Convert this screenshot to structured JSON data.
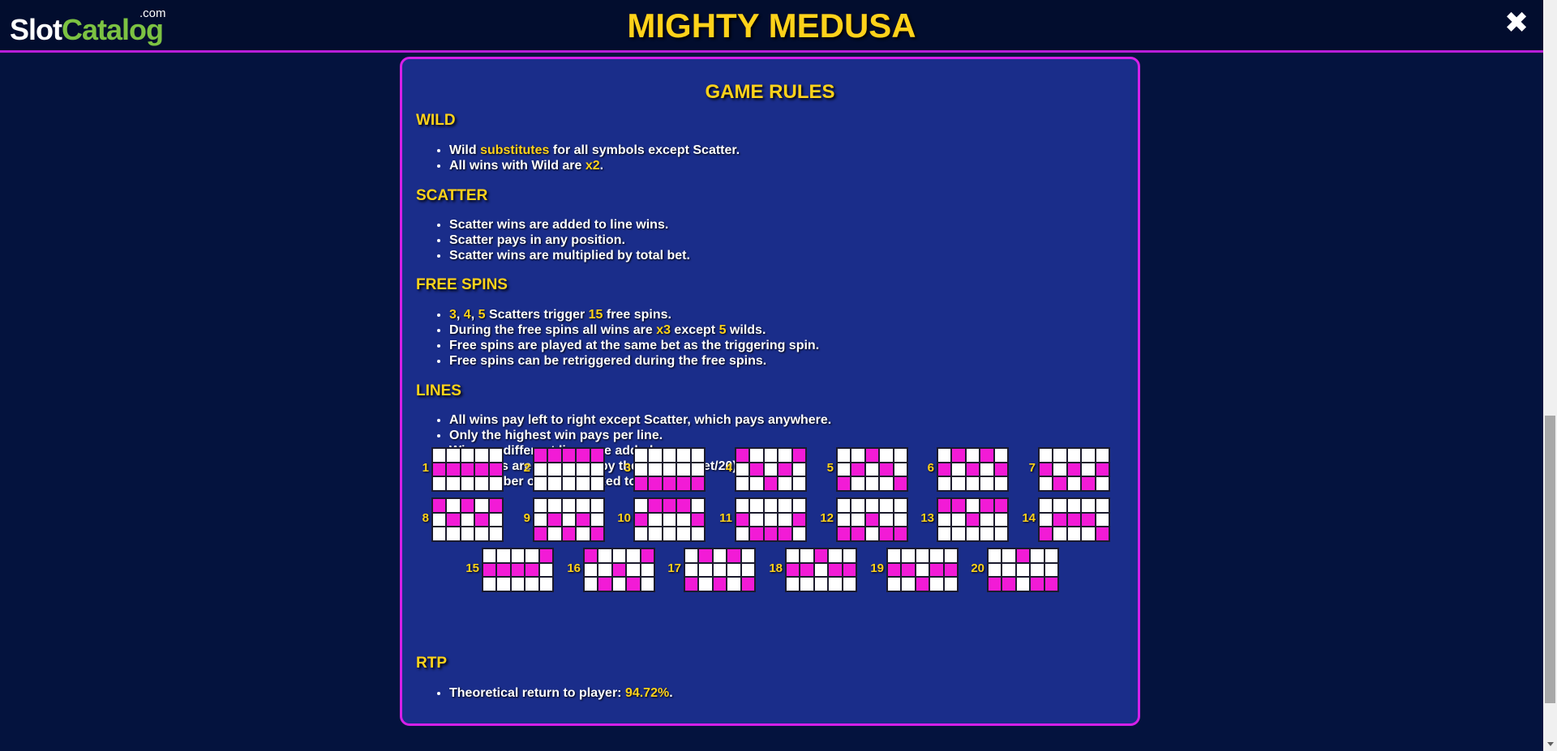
{
  "header": {
    "logo_slot": "Slot",
    "logo_catalog": "Catalog",
    "logo_com": ".com",
    "title": "MIGHTY MEDUSA",
    "close_icon": "✖"
  },
  "colors": {
    "background": "#04133e",
    "panel": "#1a2d8a",
    "panel_border": "#d520e8",
    "accent_yellow": "#ffd21a",
    "line_highlight": "#f21bd6"
  },
  "rules": {
    "title": "GAME RULES",
    "wild": {
      "heading": "WILD",
      "b1": {
        "p1": "Wild ",
        "h1": "substitutes",
        "p2": " for all symbols except Scatter."
      },
      "b2": {
        "p1": "All wins with Wild are ",
        "h1": "x2",
        "p2": "."
      }
    },
    "scatter": {
      "heading": "SCATTER",
      "b1": "Scatter wins are added to line wins.",
      "b2": "Scatter pays in any position.",
      "b3": "Scatter wins are multiplied by total bet."
    },
    "free_spins": {
      "heading": "FREE SPINS",
      "b1": {
        "h1": "3",
        "s1": ", ",
        "h2": "4",
        "s2": ", ",
        "h3": "5",
        "p1": " Scatters trigger ",
        "h4": "15",
        "p2": " free spins."
      },
      "b2": {
        "p1": "During the free spins all wins are ",
        "h1": "x3",
        "p2": " except ",
        "h2": "5",
        "p3": " wilds."
      },
      "b3": "Free spins are played at the same bet as the triggering spin.",
      "b4": "Free spins can be retriggered during the free spins."
    },
    "lines": {
      "heading": "LINES",
      "b1": "All wins pay left to right except Scatter, which pays anywhere.",
      "b2": "Only the highest win pays per line.",
      "b3": "Wins on different lines are added.",
      "b4": "Line wins are multiplied by the line bet (bet/20).",
      "b5": "The number of lines is fixed to 20.",
      "paylines": [
        {
          "number": "1",
          "rows": [
            1,
            1,
            1,
            1,
            1
          ]
        },
        {
          "number": "2",
          "rows": [
            0,
            0,
            0,
            0,
            0
          ]
        },
        {
          "number": "3",
          "rows": [
            2,
            2,
            2,
            2,
            2
          ]
        },
        {
          "number": "4",
          "rows": [
            0,
            1,
            2,
            1,
            0
          ]
        },
        {
          "number": "5",
          "rows": [
            2,
            1,
            0,
            1,
            2
          ]
        },
        {
          "number": "6",
          "rows": [
            1,
            0,
            1,
            0,
            1
          ]
        },
        {
          "number": "7",
          "rows": [
            1,
            2,
            1,
            2,
            1
          ]
        },
        {
          "number": "8",
          "rows": [
            0,
            1,
            0,
            1,
            0
          ]
        },
        {
          "number": "9",
          "rows": [
            2,
            1,
            2,
            1,
            2
          ]
        },
        {
          "number": "10",
          "rows": [
            1,
            0,
            0,
            0,
            1
          ]
        },
        {
          "number": "11",
          "rows": [
            1,
            2,
            2,
            2,
            1
          ]
        },
        {
          "number": "12",
          "rows": [
            2,
            2,
            1,
            2,
            2
          ]
        },
        {
          "number": "13",
          "rows": [
            0,
            0,
            1,
            0,
            0
          ]
        },
        {
          "number": "14",
          "rows": [
            2,
            1,
            1,
            1,
            2
          ]
        },
        {
          "number": "15",
          "rows": [
            1,
            1,
            1,
            1,
            0
          ]
        },
        {
          "number": "16",
          "rows": [
            0,
            2,
            1,
            2,
            0
          ]
        },
        {
          "number": "17",
          "rows": [
            2,
            0,
            2,
            0,
            2
          ]
        },
        {
          "number": "18",
          "rows": [
            1,
            1,
            0,
            1,
            1
          ]
        },
        {
          "number": "19",
          "rows": [
            1,
            1,
            2,
            1,
            1
          ]
        },
        {
          "number": "20",
          "rows": [
            2,
            2,
            0,
            2,
            2
          ]
        }
      ]
    },
    "rtp": {
      "heading": "RTP",
      "b1": {
        "p1": "Theoretical return to player: ",
        "h1": "94.72%",
        "p2": "."
      }
    }
  }
}
